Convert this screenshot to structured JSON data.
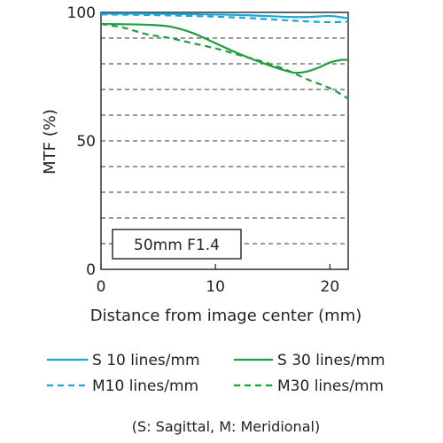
{
  "chart_data": {
    "type": "line",
    "xlabel": "Distance from image center (mm)",
    "ylabel": "MTF (%)",
    "xlim": [
      0,
      21.6
    ],
    "ylim": [
      0,
      100
    ],
    "x_ticks": [
      "0",
      "10",
      "20"
    ],
    "y_ticks": [
      "0",
      "50",
      "100"
    ],
    "grid": "horizontal dashed every 10%",
    "annotation": "50mm F1.4",
    "series": [
      {
        "name": "S 10 lines/mm",
        "color": "#1aa7d8",
        "dash": "solid",
        "x": [
          0,
          4,
          8,
          12,
          16,
          18,
          20,
          21.6
        ],
        "y": [
          99.5,
          99.5,
          99.3,
          99.0,
          98.3,
          98.2,
          98.6,
          97.7
        ]
      },
      {
        "name": "M10 lines/mm",
        "color": "#1aa7d8",
        "dash": "dashed",
        "x": [
          0,
          4,
          8,
          12,
          16,
          18,
          20,
          21.6
        ],
        "y": [
          99.2,
          99.0,
          98.6,
          98.0,
          97.0,
          96.5,
          96.2,
          96.4
        ]
      },
      {
        "name": "S 30 lines/mm",
        "color": "#1e9e3e",
        "dash": "solid",
        "x": [
          0,
          2,
          4,
          6,
          8,
          10,
          12,
          14,
          16,
          17,
          18,
          19,
          20,
          21,
          21.6
        ],
        "y": [
          95.5,
          95.4,
          95.2,
          94.5,
          92.0,
          88.0,
          84.0,
          80.5,
          77.5,
          76.5,
          77.0,
          78.5,
          80.5,
          81.5,
          81.5
        ]
      },
      {
        "name": "M30 lines/mm",
        "color": "#1e9e3e",
        "dash": "dashed",
        "x": [
          0,
          2,
          4,
          6,
          8,
          10,
          12,
          14,
          16,
          18,
          20,
          21.6
        ],
        "y": [
          95.5,
          94.0,
          91.5,
          90.0,
          88.0,
          86.0,
          83.5,
          81.0,
          78.0,
          74.0,
          70.5,
          66.5
        ]
      }
    ],
    "legend": [
      {
        "label": "S 10 lines/mm",
        "color": "#1aa7d8",
        "dash": "solid"
      },
      {
        "label": "S 30 lines/mm",
        "color": "#1e9e3e",
        "dash": "solid"
      },
      {
        "label": "M10 lines/mm",
        "color": "#1aa7d8",
        "dash": "dashed"
      },
      {
        "label": "M30 lines/mm",
        "color": "#1e9e3e",
        "dash": "dashed"
      }
    ],
    "footnote": "(S: Sagittal, M: Meridional)"
  }
}
